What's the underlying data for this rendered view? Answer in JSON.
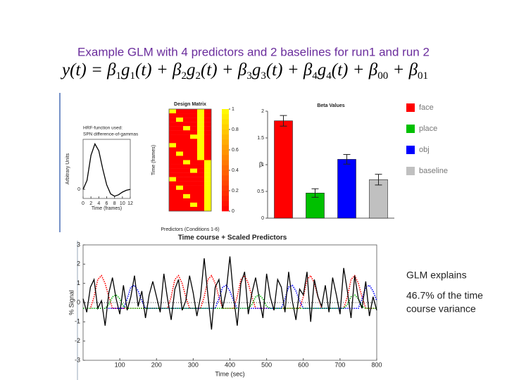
{
  "title": "Example GLM with 4 predictors and 2 baselines for run1 and run 2",
  "equation": [
    [
      "y(t) = β",
      "1"
    ],
    [
      "g",
      "1"
    ],
    [
      "(t) + β",
      "2"
    ],
    [
      "g",
      "2"
    ],
    [
      "(t) + β",
      "3"
    ],
    [
      "g",
      "3"
    ],
    [
      "(t) + β",
      "4"
    ],
    [
      "g",
      "4"
    ],
    [
      "(t) + β",
      "00"
    ],
    [
      " + β",
      "01"
    ]
  ],
  "caption": "Time course + Scaled Predictors",
  "note": [
    "GLM explains",
    "46.7% of the time",
    "course variance"
  ],
  "chart_data": [
    {
      "type": "line",
      "title": [
        "HRF-function used:",
        "SPN difference-of-gammas"
      ],
      "ylabel": "Arbitrary Units",
      "xlabel": "Time (frames)",
      "x": [
        0,
        1,
        2,
        3,
        4,
        5,
        6,
        7,
        8,
        9,
        10,
        11,
        12
      ],
      "xlim": [
        0,
        12
      ],
      "xticks": [
        0,
        2,
        4,
        6,
        8,
        10,
        12
      ],
      "ylim": [
        -0.2,
        1.1
      ],
      "yticks": [
        0
      ],
      "series": [
        {
          "color": "#000000",
          "values": [
            0,
            0.2,
            0.75,
            1,
            0.85,
            0.45,
            0.1,
            -0.1,
            -0.15,
            -0.12,
            -0.06,
            -0.02,
            0
          ]
        }
      ]
    },
    {
      "type": "heatmap",
      "title": "Design Matrix",
      "ylabel": "Time (frames)",
      "xlabel": "Predictors (Conditions 1-6)",
      "colors": [
        "#ff0000",
        "#ffff00"
      ],
      "clim": [
        0,
        1
      ],
      "cticks": [
        0,
        0.2,
        0.4,
        0.6,
        0.8,
        1
      ],
      "values": [
        [
          1,
          0,
          0,
          0,
          1,
          0
        ],
        [
          0,
          0,
          0,
          0,
          1,
          0
        ],
        [
          0,
          1,
          0,
          0,
          1,
          0
        ],
        [
          0,
          0,
          0,
          0,
          1,
          0
        ],
        [
          0,
          0,
          1,
          0,
          1,
          0
        ],
        [
          0,
          0,
          0,
          0,
          1,
          0
        ],
        [
          0,
          0,
          0,
          1,
          1,
          0
        ],
        [
          0,
          0,
          0,
          0,
          1,
          0
        ],
        [
          1,
          0,
          0,
          0,
          1,
          0
        ],
        [
          0,
          0,
          0,
          0,
          1,
          0
        ],
        [
          0,
          1,
          0,
          0,
          1,
          0
        ],
        [
          0,
          0,
          0,
          0,
          1,
          0
        ],
        [
          0,
          0,
          1,
          0,
          0,
          1
        ],
        [
          0,
          0,
          0,
          0,
          0,
          1
        ],
        [
          0,
          0,
          0,
          1,
          0,
          1
        ],
        [
          0,
          0,
          0,
          0,
          0,
          1
        ],
        [
          1,
          0,
          0,
          0,
          0,
          1
        ],
        [
          0,
          0,
          0,
          0,
          0,
          1
        ],
        [
          0,
          1,
          0,
          0,
          0,
          1
        ],
        [
          0,
          0,
          0,
          0,
          0,
          1
        ],
        [
          0,
          0,
          1,
          0,
          0,
          1
        ],
        [
          0,
          0,
          0,
          0,
          0,
          1
        ],
        [
          0,
          0,
          0,
          1,
          0,
          1
        ],
        [
          0,
          0,
          0,
          0,
          0,
          1
        ]
      ]
    },
    {
      "type": "bar",
      "title": "Beta Values",
      "ylabel": "β",
      "categories": [
        "face",
        "place",
        "obj",
        "baseline"
      ],
      "values": [
        1.82,
        0.47,
        1.1,
        0.72
      ],
      "errors": [
        0.1,
        0.08,
        0.09,
        0.1
      ],
      "colors": [
        "#ff0000",
        "#00c000",
        "#0000ff",
        "#c0c0c0"
      ],
      "ylim": [
        0,
        2
      ],
      "yticks": [
        0,
        0.5,
        1,
        1.5,
        2
      ]
    },
    {
      "type": "line",
      "ylabel": "% Signal",
      "xlabel": "Time (sec)",
      "xlim": [
        0,
        800
      ],
      "xticks": [
        100,
        200,
        300,
        400,
        500,
        600,
        700,
        800
      ],
      "ylim": [
        -3,
        3
      ],
      "yticks": [
        -3,
        -2,
        -1,
        0,
        1,
        2,
        3
      ],
      "x": [
        0,
        10,
        20,
        30,
        40,
        50,
        60,
        70,
        80,
        90,
        100,
        110,
        120,
        130,
        140,
        150,
        160,
        170,
        180,
        190,
        200,
        210,
        220,
        230,
        240,
        250,
        260,
        270,
        280,
        290,
        300,
        310,
        320,
        330,
        340,
        350,
        360,
        370,
        380,
        390,
        400,
        410,
        420,
        430,
        440,
        450,
        460,
        470,
        480,
        490,
        500,
        510,
        520,
        530,
        540,
        550,
        560,
        570,
        580,
        590,
        600,
        610,
        620,
        630,
        640,
        650,
        660,
        670,
        680,
        690,
        700,
        710,
        720,
        730,
        740,
        750,
        760,
        770,
        780,
        790,
        800
      ],
      "series": [
        {
          "color": "#ff0000",
          "style": "dotted",
          "values": [
            -0.3,
            -0.3,
            -0.3,
            0.3,
            1.2,
            1.4,
            1.0,
            0.3,
            -0.3,
            -0.3,
            -0.3,
            -0.3,
            -0.3,
            -0.3,
            -0.3,
            -0.3,
            -0.3,
            -0.3,
            -0.3,
            -0.3,
            -0.3,
            -0.3,
            -0.3,
            -0.3,
            0.3,
            1.2,
            1.4,
            1.0,
            0.3,
            -0.3,
            -0.3,
            -0.3,
            -0.3,
            0.3,
            1.2,
            1.4,
            1.0,
            0.3,
            -0.3,
            -0.3,
            -0.3,
            -0.3,
            0.3,
            1.2,
            1.4,
            1.0,
            0.3,
            -0.3,
            -0.3,
            -0.3,
            -0.3,
            -0.3,
            -0.3,
            -0.3,
            -0.3,
            -0.3,
            -0.3,
            -0.3,
            -0.3,
            -0.3,
            0.3,
            1.2,
            1.4,
            1.0,
            0.3,
            -0.3,
            -0.3,
            -0.3,
            -0.3,
            -0.3,
            -0.3,
            -0.3,
            0.3,
            1.2,
            1.4,
            1.0,
            0.3,
            -0.3,
            -0.3,
            -0.3,
            -0.3
          ]
        },
        {
          "color": "#0000ff",
          "style": "dotted",
          "values": [
            -0.3,
            -0.3,
            -0.3,
            -0.3,
            -0.3,
            -0.3,
            -0.3,
            -0.3,
            -0.3,
            -0.3,
            -0.3,
            -0.3,
            0.2,
            0.8,
            0.9,
            0.6,
            0.1,
            -0.3,
            -0.3,
            -0.3,
            -0.3,
            -0.3,
            -0.3,
            -0.3,
            -0.3,
            -0.3,
            -0.3,
            -0.3,
            -0.3,
            -0.3,
            -0.3,
            -0.3,
            -0.3,
            -0.3,
            -0.3,
            -0.3,
            -0.3,
            0.2,
            0.8,
            0.9,
            0.6,
            0.1,
            -0.3,
            -0.3,
            -0.3,
            -0.3,
            -0.3,
            -0.3,
            -0.3,
            -0.3,
            -0.3,
            -0.3,
            -0.3,
            -0.3,
            -0.3,
            0.2,
            0.8,
            0.9,
            0.6,
            0.1,
            -0.3,
            -0.3,
            -0.3,
            -0.3,
            -0.3,
            -0.3,
            -0.3,
            -0.3,
            -0.3,
            -0.3,
            -0.3,
            -0.3,
            -0.3,
            -0.3,
            -0.3,
            -0.3,
            0.2,
            0.8,
            0.9,
            0.6,
            0.1
          ]
        },
        {
          "color": "#00b000",
          "style": "dotted",
          "values": [
            -0.3,
            -0.3,
            -0.3,
            -0.3,
            -0.3,
            -0.3,
            -0.3,
            -0.1,
            0.3,
            0.4,
            0.2,
            -0.2,
            -0.3,
            -0.3,
            -0.3,
            -0.3,
            -0.3,
            -0.3,
            -0.3,
            -0.3,
            -0.3,
            -0.3,
            -0.3,
            -0.3,
            -0.3,
            -0.3,
            -0.3,
            -0.3,
            -0.3,
            -0.3,
            -0.3,
            -0.3,
            -0.3,
            -0.3,
            -0.3,
            -0.3,
            -0.3,
            -0.3,
            -0.3,
            -0.3,
            -0.3,
            -0.3,
            -0.3,
            -0.3,
            -0.3,
            -0.3,
            -0.1,
            0.3,
            0.4,
            0.2,
            -0.2,
            -0.3,
            -0.3,
            -0.3,
            -0.3,
            -0.3,
            -0.3,
            -0.3,
            -0.3,
            -0.3,
            -0.3,
            -0.3,
            -0.3,
            -0.3,
            -0.3,
            -0.3,
            -0.3,
            -0.3,
            -0.3,
            -0.3,
            -0.3,
            -0.3,
            -0.1,
            0.3,
            0.4,
            0.2,
            -0.2,
            -0.3,
            -0.3,
            -0.3,
            -0.3
          ]
        },
        {
          "color": "#000000",
          "style": "solid",
          "values": [
            0.2,
            -0.5,
            0.8,
            1.2,
            -0.3,
            0.1,
            -1.2,
            0.5,
            1.3,
            0.2,
            -0.6,
            0.9,
            -0.4,
            0.3,
            1.4,
            -0.2,
            0.6,
            -0.8,
            0.4,
            1.1,
            0.3,
            -0.5,
            1.5,
            0.2,
            -0.9,
            0.7,
            1.2,
            -0.4,
            0.1,
            1.4,
            0.5,
            -0.7,
            0.3,
            2.3,
            0.4,
            -1.4,
            0.8,
            1.2,
            -0.3,
            0.6,
            2.4,
            0.3,
            -1.2,
            1.0,
            1.6,
            -0.6,
            0.5,
            1.3,
            0.2,
            -0.8,
            1.5,
            0.3,
            -0.4,
            1.2,
            0.8,
            -0.5,
            1.6,
            0.1,
            -0.9,
            0.7,
            0.4,
            1.6,
            -1.0,
            1.2,
            0.3,
            -0.2,
            0.9,
            -0.5,
            1.3,
            0.4,
            -0.6,
            1.8,
            0.6,
            -0.8,
            1.4,
            0.2,
            -0.3,
            1.1,
            -0.7,
            0.3,
            -0.4
          ]
        }
      ]
    }
  ]
}
